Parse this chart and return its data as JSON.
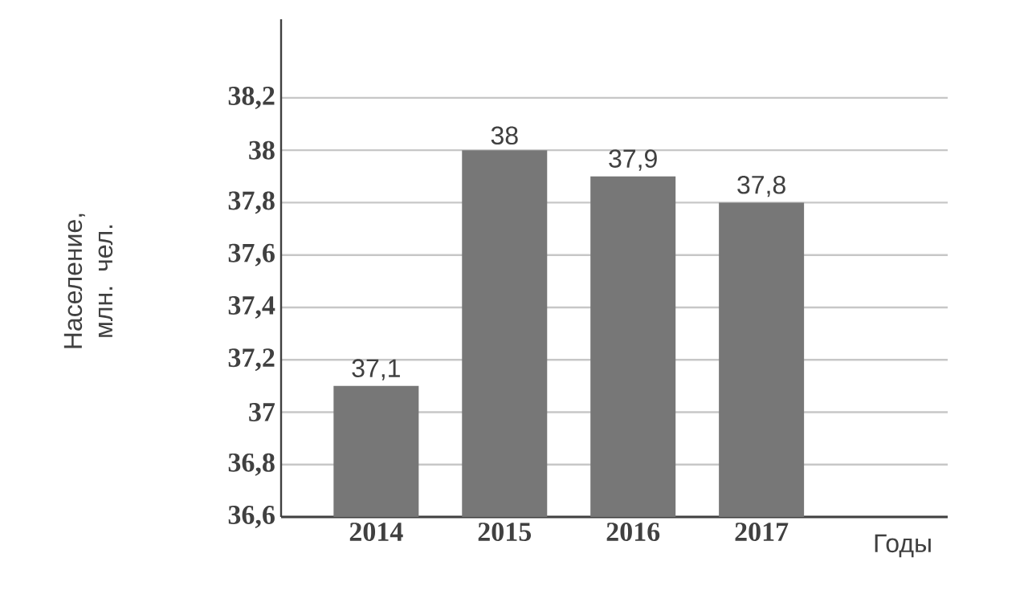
{
  "chart_data": {
    "type": "bar",
    "ylabel": "Население, млн. чел.",
    "xlabel": "Годы",
    "categories": [
      "2014",
      "2015",
      "2016",
      "2017"
    ],
    "values": [
      37.1,
      38,
      37.9,
      37.8
    ],
    "value_labels": [
      "37,1",
      "38",
      "37,9",
      "37,8"
    ],
    "color": "#777777",
    "ylim": [
      36.6,
      38.5
    ],
    "yticks": [
      {
        "value": 36.6,
        "label": "36,6"
      },
      {
        "value": 36.8,
        "label": "36,8"
      },
      37,
      {
        "value": 37.2,
        "label": "37,2"
      },
      {
        "value": 37.4,
        "label": "37,4"
      },
      {
        "value": 37.6,
        "label": "37,6"
      },
      {
        "value": 37.8,
        "label": "37,8"
      },
      38,
      {
        "value": 38.2,
        "label": "38,2"
      }
    ],
    "grid": "y"
  }
}
